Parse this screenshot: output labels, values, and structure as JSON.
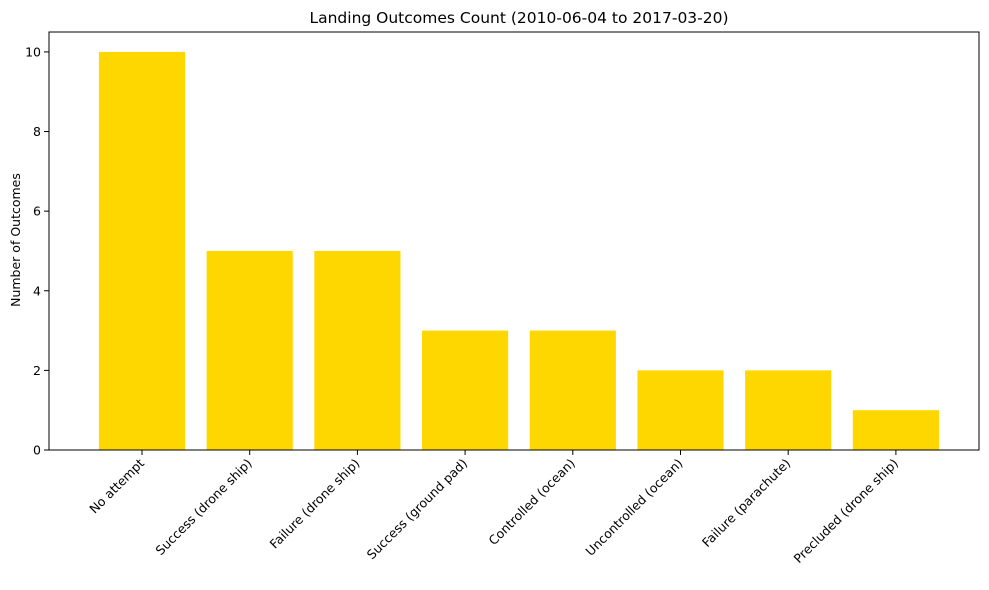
{
  "chart_data": {
    "type": "bar",
    "title": "Landing Outcomes Count (2010-06-04 to 2017-03-20)",
    "xlabel": "",
    "ylabel": "Number of Outcomes",
    "categories": [
      "No attempt",
      "Success (drone ship)",
      "Failure (drone ship)",
      "Success (ground pad)",
      "Controlled (ocean)",
      "Uncontrolled (ocean)",
      "Failure (parachute)",
      "Precluded (drone ship)"
    ],
    "values": [
      10,
      5,
      5,
      3,
      3,
      2,
      2,
      1
    ],
    "ylim": [
      0,
      10.5
    ],
    "yticks": [
      0,
      2,
      4,
      6,
      8,
      10
    ],
    "bar_color": "#FFD700",
    "grid": false,
    "legend": "none"
  }
}
